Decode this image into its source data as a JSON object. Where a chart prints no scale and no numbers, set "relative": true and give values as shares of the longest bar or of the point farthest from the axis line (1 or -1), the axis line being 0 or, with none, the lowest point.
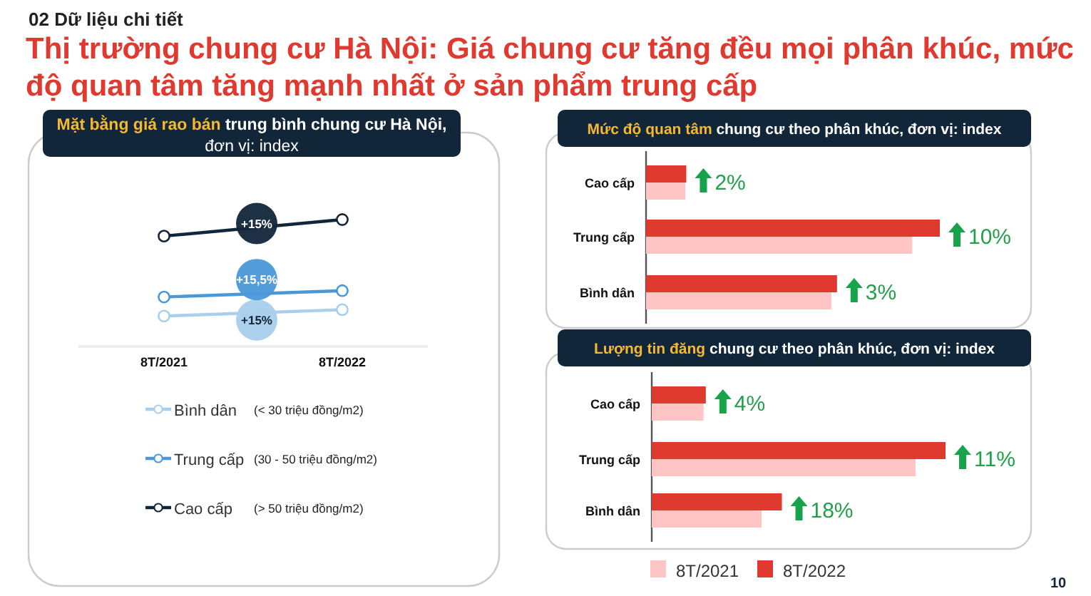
{
  "chart_data": [
    {
      "type": "line",
      "title": "Mặt bằng giá rao bán",
      "subtitle": "trung bình chung cư Hà Nội, đơn vị: index",
      "categories": [
        "8T/2021",
        "8T/2022"
      ],
      "relative": true,
      "marker": "circle",
      "legend": "bottom",
      "series": [
        {
          "name": "Bình dân",
          "color": "#a9cfec",
          "values": [
            0.24,
            0.29
          ]
        },
        {
          "name": "Trung cấp",
          "color": "#4a98d8",
          "values": [
            0.39,
            0.44
          ]
        },
        {
          "name": "Cao cấp",
          "color": "#12263a",
          "values": [
            0.87,
            1
          ]
        }
      ],
      "annotations": [
        "+15%",
        "+15,5%",
        "+15%",
        "(< 30 triệu đồng/m2)",
        "(30 - 50 triệu đồng/m2)",
        "(> 50 triệu đồng/m2)",
        "02 Dữ liệu chi tiết",
        "Thị trường chung cư Hà Nội: Giá chung cư tăng đều mọi phân khúc, mức độ quan tâm tăng mạnh nhất ở sản phẩm trung cấp"
      ]
    },
    {
      "type": "bar",
      "orientation": "horizontal",
      "relative": true,
      "title": "Mức độ quan tâm",
      "subtitle": "chung cư theo phân khúc, đơn vị: index",
      "categories": [
        "Cao cấp",
        "Trung cấp",
        "Bình dân"
      ],
      "series": [
        {
          "color": "#e0392f",
          "values": [
            0.137,
            1,
            0.65
          ]
        },
        {
          "color": "#ffc5c5",
          "values": [
            0.134,
            0.906,
            0.631
          ]
        }
      ],
      "annotations": [
        "2%",
        "10%",
        "3%"
      ]
    },
    {
      "type": "bar",
      "orientation": "horizontal",
      "relative": true,
      "title": "Lượng tin đăng",
      "subtitle": "chung cư theo phân khúc, đơn vị: index",
      "categories": [
        "Cao cấp",
        "Trung cấp",
        "Bình dân"
      ],
      "legend": "bottom",
      "series": [
        {
          "name": "8T/2022",
          "color": "#e0392f",
          "values": [
            0.184,
            1,
            0.443
          ]
        },
        {
          "name": "8T/2021",
          "color": "#ffc5c5",
          "values": [
            0.176,
            0.898,
            0.374
          ]
        }
      ],
      "annotations": [
        "4%",
        "11%",
        "18%",
        "10"
      ]
    }
  ]
}
